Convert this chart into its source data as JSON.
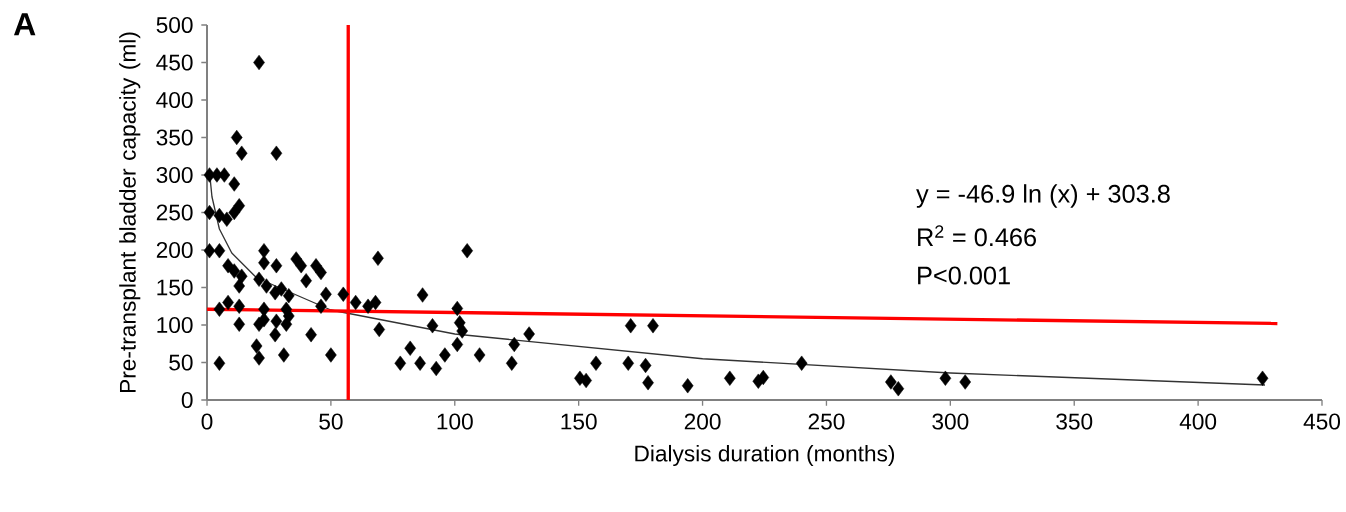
{
  "chart_data": {
    "type": "scatter",
    "xlabel": "Dialysis duration (months)",
    "ylabel": "Pre-transplant bladder capacity (ml)",
    "xlim": [
      0,
      450
    ],
    "xticks": [
      0,
      50,
      100,
      150,
      200,
      250,
      300,
      350,
      400,
      450
    ],
    "ylim": [
      0,
      500
    ],
    "yticks": [
      0,
      50,
      100,
      150,
      200,
      250,
      300,
      350,
      400,
      450,
      500
    ],
    "grid": false,
    "annotations": [
      "A",
      "y = -46.9 ln (x) + 303.8",
      "R$^{2}$ = 0.466",
      "P<0.001"
    ],
    "ref_lines": [
      {
        "axis": "x",
        "value": 57,
        "color": "#ff0000"
      }
    ],
    "series": [
      {
        "color": "#000000",
        "marker": "diamond",
        "x": [
          21,
          12,
          14,
          28,
          1,
          4,
          7,
          11,
          1,
          5,
          8,
          11,
          13,
          1,
          5,
          23,
          69,
          105,
          8.5,
          11,
          14,
          13,
          23,
          28,
          36,
          38,
          44,
          46,
          40,
          21,
          24,
          27.5,
          30,
          33,
          48,
          55,
          60,
          68,
          65,
          87,
          101,
          46,
          5,
          8.5,
          13,
          23,
          32,
          33,
          13,
          21,
          23,
          28,
          32,
          27.5,
          42,
          69.5,
          91,
          102,
          103,
          101,
          20,
          21,
          31,
          50,
          82,
          96,
          110,
          5,
          78,
          86,
          92.5,
          123,
          124,
          130,
          150.5,
          153,
          157,
          171,
          180,
          170,
          177,
          178,
          194,
          211,
          222.5,
          224.5,
          240,
          276,
          279,
          298,
          306,
          426
        ],
        "values": [
          450,
          350,
          329,
          329,
          300,
          300,
          300,
          288,
          250,
          246,
          241,
          250,
          259,
          199,
          199,
          199,
          189,
          199,
          179,
          172,
          165,
          152,
          183,
          179,
          188,
          179,
          179,
          170,
          159,
          161,
          152,
          143,
          148,
          139,
          141,
          141,
          130,
          130,
          125,
          140,
          122,
          125,
          121,
          130,
          125,
          121,
          121,
          112,
          101,
          101,
          107,
          105,
          101,
          87,
          87,
          94,
          99,
          103,
          92,
          74,
          72,
          56,
          60,
          60,
          69,
          60,
          60,
          49,
          49,
          49,
          42,
          49,
          74,
          88,
          29,
          26,
          49,
          99,
          99,
          49,
          46,
          23,
          19,
          29,
          25,
          30,
          49,
          24,
          15,
          29,
          24,
          29
        ]
      },
      {
        "type": "line",
        "color": "#333333",
        "x": [
          1,
          2,
          5,
          10,
          20,
          50,
          100,
          200,
          300,
          427
        ],
        "values": [
          304,
          271,
          228,
          196,
          163,
          120,
          88,
          55,
          36,
          20
        ]
      },
      {
        "type": "line",
        "color": "#ff0000",
        "x": [
          0,
          432
        ],
        "values": [
          121,
          102
        ]
      }
    ]
  }
}
